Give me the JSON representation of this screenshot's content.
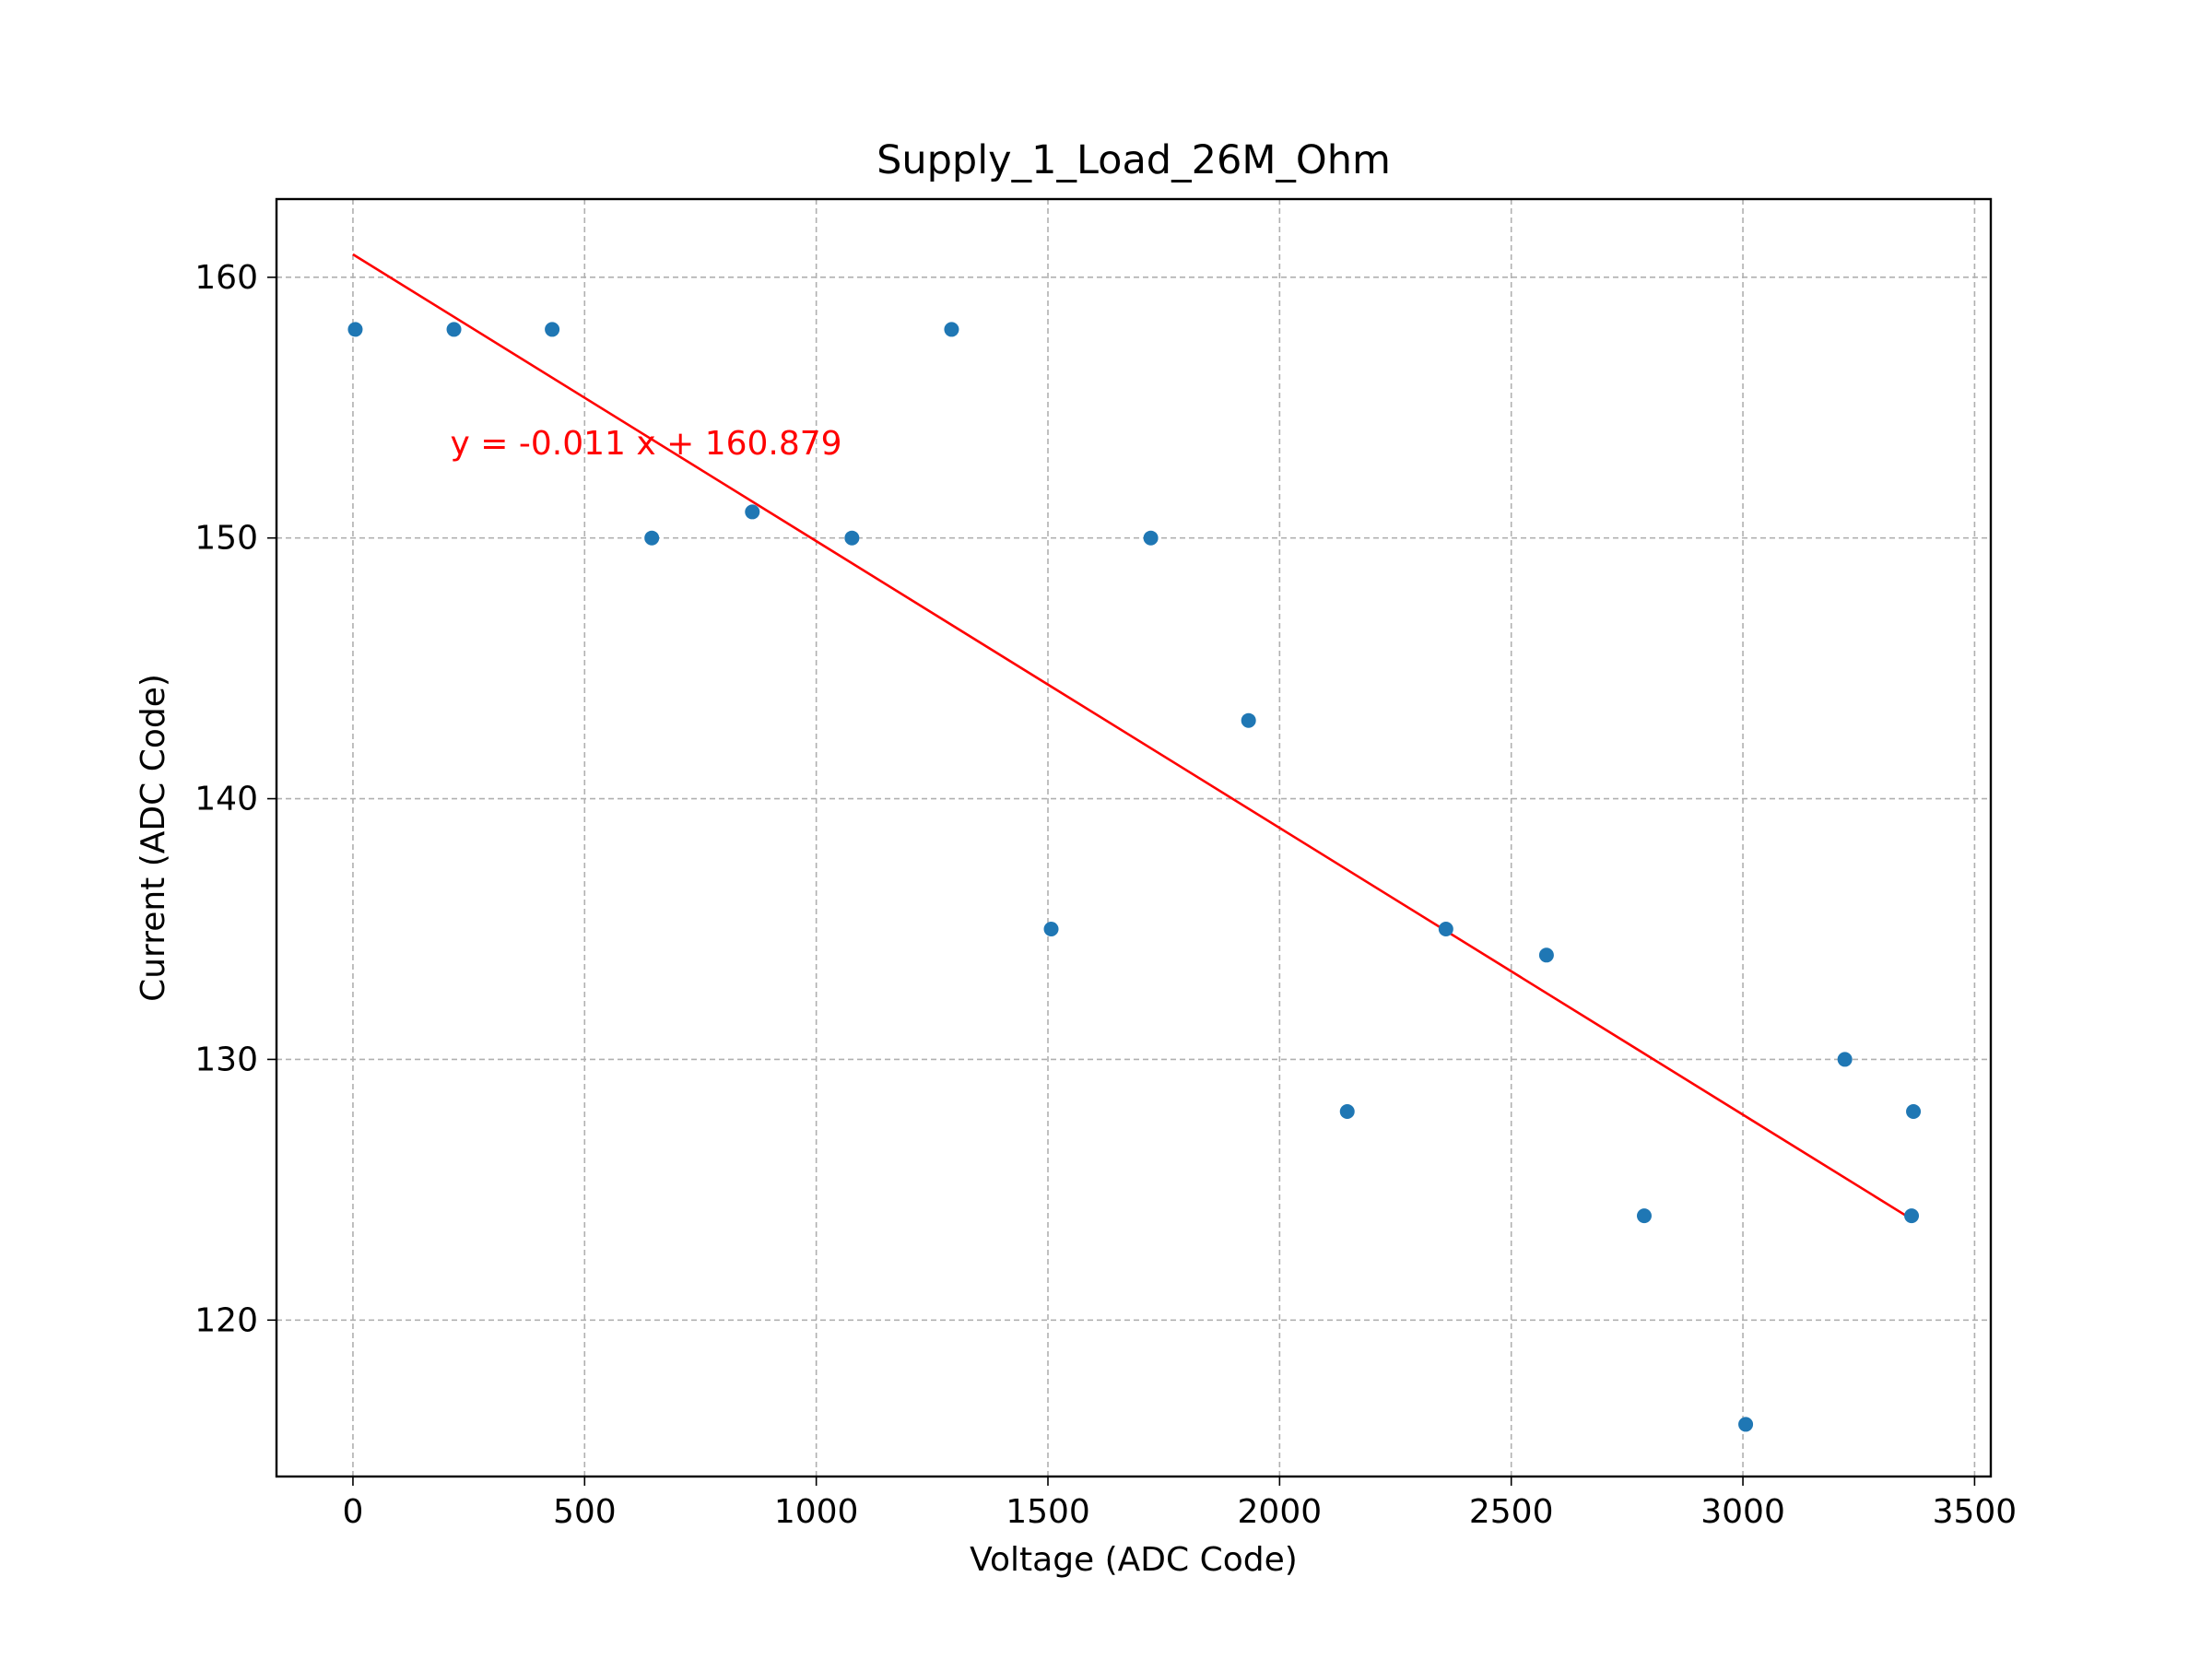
{
  "chart_data": {
    "type": "scatter",
    "title": "Supply_1_Load_26M_Ohm",
    "xlabel": "Voltage (ADC Code)",
    "ylabel": "Current (ADC Code)",
    "xlim": [
      -165,
      3535
    ],
    "ylim": [
      114,
      163
    ],
    "xticks": [
      0,
      500,
      1000,
      1500,
      2000,
      2500,
      3000,
      3500
    ],
    "yticks": [
      120,
      130,
      140,
      150,
      160
    ],
    "xtick_labels": [
      "0",
      "500",
      "1000",
      "1500",
      "2000",
      "2500",
      "3000",
      "3500"
    ],
    "ytick_labels": [
      "120",
      "130",
      "140",
      "150",
      "160"
    ],
    "grid": true,
    "series": [
      {
        "type": "scatter",
        "color": "#1f77b4",
        "points": [
          {
            "x": 5,
            "y": 158
          },
          {
            "x": 218,
            "y": 158
          },
          {
            "x": 430,
            "y": 158
          },
          {
            "x": 645,
            "y": 150
          },
          {
            "x": 862,
            "y": 151
          },
          {
            "x": 1077,
            "y": 150
          },
          {
            "x": 1292,
            "y": 158
          },
          {
            "x": 1507,
            "y": 135
          },
          {
            "x": 1722,
            "y": 150
          },
          {
            "x": 1933,
            "y": 143
          },
          {
            "x": 2146,
            "y": 128
          },
          {
            "x": 2359,
            "y": 135
          },
          {
            "x": 2576,
            "y": 134
          },
          {
            "x": 2787,
            "y": 124
          },
          {
            "x": 3006,
            "y": 116
          },
          {
            "x": 3220,
            "y": 130
          },
          {
            "x": 3364,
            "y": 124
          },
          {
            "x": 3368,
            "y": 128
          }
        ]
      },
      {
        "type": "line",
        "color": "#ff0000",
        "slope": -0.011,
        "intercept": 160.879,
        "x_range": [
          0,
          3368
        ]
      }
    ],
    "annotations": [
      {
        "text": "y = -0.011 x + 160.879",
        "x": 210,
        "y": 153.2,
        "color": "#ff0000"
      }
    ]
  }
}
